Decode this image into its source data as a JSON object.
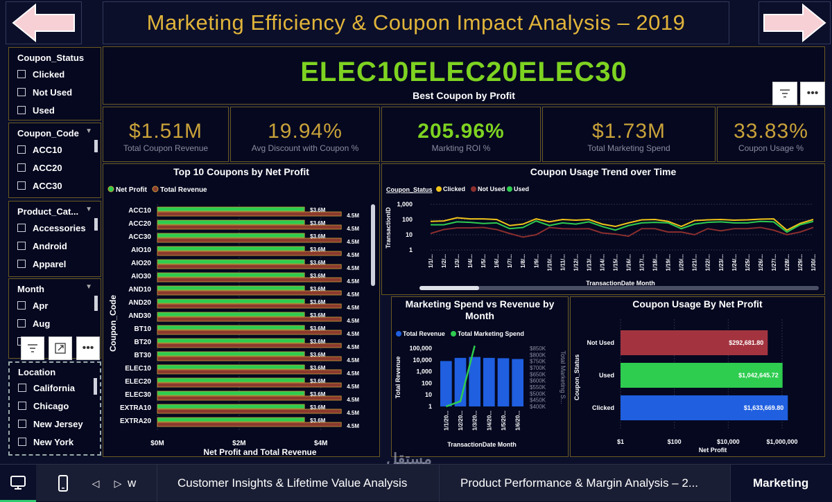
{
  "header": {
    "title": "Marketing Efficiency & Coupon Impact Analysis – 2019",
    "best_coupon_value": "ELEC10ELEC20ELEC30",
    "best_coupon_label": "Best Coupon by Profit"
  },
  "slicers": [
    {
      "title": "Coupon_Status",
      "items": [
        "Clicked",
        "Not Used",
        "Used"
      ]
    },
    {
      "title": "Coupon_Code",
      "items": [
        "ACC10",
        "ACC20",
        "ACC30"
      ]
    },
    {
      "title": "Product_Cat...",
      "items": [
        "Accessories",
        "Android",
        "Apparel"
      ]
    },
    {
      "title": "Month",
      "items": [
        "Apr",
        "Aug"
      ]
    },
    {
      "title": "Location",
      "items": [
        "California",
        "Chicago",
        "New Jersey",
        "New York"
      ]
    }
  ],
  "kpis": [
    {
      "value": "$1.51M",
      "label": "Total Coupon Revenue",
      "color": "#c9a23a"
    },
    {
      "value": "19.94%",
      "label": "Avg Discount with Coupon %",
      "color": "#c9a23a"
    },
    {
      "value": "205.96%",
      "label": "Markting ROI %",
      "color": "#7ed321"
    },
    {
      "value": "$1.73M",
      "label": "Total Marketing Spend",
      "color": "#c9a23a"
    },
    {
      "value": "33.83%",
      "label": "Coupon Usage %",
      "color": "#c9a23a"
    }
  ],
  "top10": {
    "title": "Top 10 Coupons by Net Profit",
    "legend": [
      "Net Profit",
      "Total Revenue"
    ],
    "ylabel": "Coupon_Code",
    "xlabel": "Net Profit and Total Revenue",
    "xticks": [
      "$0M",
      "$2M",
      "$4M"
    ]
  },
  "trend": {
    "title": "Coupon Usage Trend over Time",
    "legend_title": "Coupon_Status",
    "legend": [
      "Clicked",
      "Not Used",
      "Used"
    ],
    "ylabel": "TransactionID",
    "xlabel": "TransactionDate Month",
    "yticks": [
      "1,000",
      "100",
      "10",
      "1"
    ],
    "xticks": [
      "1/1/...",
      "1/2/...",
      "1/3/...",
      "1/4/...",
      "1/5/...",
      "1/6/...",
      "1/7/...",
      "1/8/...",
      "1/9/...",
      "1/10/...",
      "1/11/...",
      "1/12/...",
      "1/13/...",
      "1/14/...",
      "1/15/...",
      "1/16/...",
      "1/17/...",
      "1/18/...",
      "1/19/...",
      "1/20/...",
      "1/21/...",
      "1/22/...",
      "1/23/...",
      "1/24/...",
      "1/25/...",
      "1/26/...",
      "1/27/...",
      "1/28/...",
      "1/29/...",
      "1/30/..."
    ]
  },
  "spend": {
    "title": "Marketing Spend vs Revenue by Month",
    "legend": [
      "Total Revenue",
      "Total Marketing Spend"
    ],
    "ylabel_left": "Total Revenue",
    "ylabel_right": "Total Marketing S...",
    "xlabel": "TransactionDate Month",
    "yticks_left": [
      "100,000",
      "10,000",
      "1,000",
      "100",
      "10",
      "1"
    ],
    "yticks_right": [
      "$850K",
      "$800K",
      "$750K",
      "$700K",
      "$650K",
      "$600K",
      "$550K",
      "$500K",
      "$450K",
      "$400K"
    ],
    "xticks": [
      "1/1/20...",
      "1/2/20...",
      "1/3/20...",
      "1/4/20...",
      "1/5/20...",
      "1/6/20..."
    ]
  },
  "usage": {
    "title": "Coupon Usage By Net Profit",
    "ylabel": "Coupon_Status",
    "xlabel": "Net Profit",
    "xticks": [
      "$1",
      "$100",
      "$10,000",
      "$1,000,000"
    ]
  },
  "chart_data": [
    {
      "type": "bar",
      "title": "Top 10 Coupons by Net Profit",
      "categories": [
        "ACC10",
        "ACC20",
        "ACC30",
        "AIO10",
        "AIO20",
        "AIO30",
        "AND10",
        "AND20",
        "AND30",
        "BT10",
        "BT20",
        "BT30",
        "ELEC10",
        "ELEC20",
        "ELEC30",
        "EXTRA10",
        "EXTRA20"
      ],
      "series": [
        {
          "name": "Net Profit",
          "values": [
            3.6,
            3.6,
            3.6,
            3.6,
            3.6,
            3.6,
            3.6,
            3.6,
            3.6,
            3.6,
            3.6,
            3.6,
            3.6,
            3.6,
            3.6,
            3.6,
            3.6
          ],
          "labels": [
            "$3.6M",
            "$3.6M",
            "$3.6M",
            "$3.6M",
            "$3.6M",
            "$3.6M",
            "$3.6M",
            "$3.6M",
            "$3.6M",
            "$3.6M",
            "$3.6M",
            "$3.6M",
            "$3.6M",
            "$3.6M",
            "$3.6M",
            "$3.6M",
            "$3.6M"
          ]
        },
        {
          "name": "Total Revenue",
          "values": [
            4.5,
            4.5,
            4.5,
            4.5,
            4.5,
            4.5,
            4.5,
            4.5,
            4.5,
            4.5,
            4.5,
            4.5,
            4.5,
            4.5,
            4.5,
            4.5,
            4.5
          ],
          "labels": [
            "4.5M",
            "4.5M",
            "4.5M",
            "4.5M",
            "4.5M",
            "4.5M",
            "4.5M",
            "4.5M",
            "4.5M",
            "4.5M",
            "4.5M",
            "4.5M",
            "4.5M",
            "4.5M",
            "4.5M",
            "4.5M",
            "4.5M"
          ]
        }
      ],
      "xlim": [
        0,
        4.7
      ]
    },
    {
      "type": "line",
      "title": "Coupon Usage Trend over Time",
      "log_scale": true,
      "ylim": [
        1,
        1000
      ],
      "series": [
        {
          "name": "Clicked",
          "values": [
            75,
            80,
            130,
            110,
            110,
            100,
            40,
            50,
            110,
            70,
            100,
            90,
            100,
            50,
            35,
            60,
            95,
            100,
            75,
            35,
            85,
            95,
            100,
            90,
            95,
            105,
            110,
            20,
            55,
            100
          ]
        },
        {
          "name": "Not Used",
          "values": [
            12,
            22,
            28,
            28,
            30,
            22,
            12,
            7,
            10,
            30,
            25,
            24,
            25,
            13,
            11,
            8,
            25,
            25,
            15,
            15,
            10,
            25,
            18,
            25,
            25,
            30,
            20,
            10,
            15,
            30
          ]
        },
        {
          "name": "Used",
          "values": [
            45,
            45,
            70,
            65,
            55,
            60,
            25,
            30,
            80,
            40,
            60,
            50,
            70,
            35,
            20,
            40,
            60,
            65,
            60,
            25,
            50,
            65,
            70,
            60,
            60,
            75,
            70,
            15,
            45,
            75
          ]
        }
      ]
    },
    {
      "type": "bar",
      "title": "Marketing Spend vs Revenue by Month",
      "categories": [
        "1/1/20...",
        "1/2/20...",
        "1/3/20...",
        "1/4/20...",
        "1/5/20...",
        "1/6/20..."
      ],
      "series": [
        {
          "name": "Total Revenue",
          "values": [
            8000,
            15000,
            18000,
            15000,
            14000,
            12000
          ]
        },
        {
          "name": "Total Marketing Spend",
          "values": [
            400000,
            440000,
            870000,
            null,
            null,
            null
          ]
        }
      ]
    },
    {
      "type": "bar",
      "title": "Coupon Usage By Net Profit",
      "categories": [
        "Not Used",
        "Used",
        "Clicked"
      ],
      "values": [
        292681.8,
        1042645.72,
        1633669.8
      ],
      "labels": [
        "$292,681.80",
        "$1,042,645.72",
        "$1,633,669.80"
      ],
      "colors": [
        "#a3343f",
        "#2ecc4f",
        "#1f5fe0"
      ],
      "log_scale": true
    }
  ],
  "pages": {
    "tabs": [
      "w",
      "Customer Insights & Lifetime Value Analysis",
      "Product Performance & Margin Analysis – 2...",
      "Marketing"
    ],
    "watermark": "مستقل mostaql.com"
  }
}
